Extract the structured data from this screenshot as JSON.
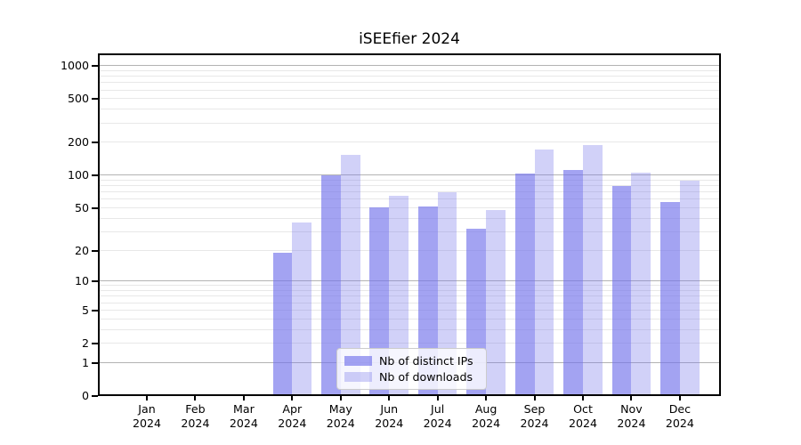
{
  "chart_data": {
    "type": "bar",
    "title": "iSEEfier 2024",
    "categories": [
      "Jan 2024",
      "Feb 2024",
      "Mar 2024",
      "Apr 2024",
      "May 2024",
      "Jun 2024",
      "Jul 2024",
      "Aug 2024",
      "Sep 2024",
      "Oct 2024",
      "Nov 2024",
      "Dec 2024"
    ],
    "series": [
      {
        "name": "Nb of distinct IPs",
        "color": "#7373eb",
        "opacity": 0.66,
        "values": [
          0,
          0,
          0,
          19,
          100,
          51,
          52,
          32,
          105,
          113,
          80,
          57
        ]
      },
      {
        "name": "Nb of downloads",
        "color": "#7373eb",
        "opacity": 0.33,
        "values": [
          0,
          0,
          0,
          37,
          155,
          65,
          70,
          48,
          175,
          190,
          107,
          90
        ]
      }
    ],
    "xlabel": "",
    "ylabel": "",
    "yscale": "log1p",
    "yticks": [
      0,
      1,
      2,
      5,
      10,
      20,
      50,
      100,
      200,
      500,
      1000
    ],
    "ylim": [
      0,
      1300
    ],
    "grid": true,
    "legend_position": "inside-bottom-center"
  }
}
